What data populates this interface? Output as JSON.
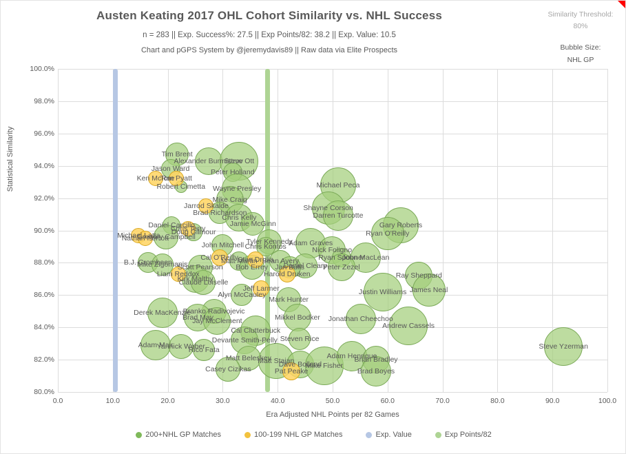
{
  "header": {
    "title": "Austen Keating 2017 OHL Cohort Similarity vs. NHL Success",
    "subtitle": "n = 283 || Exp. Success%: 27.5 || Exp Points/82: 38.2 || Exp. Value: 10.5",
    "credit": "Chart and pGPS System by @jeremydavis89 || Raw data via Elite Prospects",
    "threshold_label": "Similarity Threshold:",
    "threshold_value": "80%",
    "bubble_size_label": "Bubble Size:",
    "bubble_size_value": "NHL GP"
  },
  "chart_data": {
    "type": "scatter",
    "subtype": "bubble",
    "title": "Austen Keating 2017 OHL Cohort Similarity vs. NHL Success",
    "xlabel": "Era Adjusted NHL Points per 82 Games",
    "ylabel": "Statistical Similarity",
    "xlim": [
      0,
      100
    ],
    "ylim": [
      80,
      100
    ],
    "grid": true,
    "x_ticks": [
      {
        "v": 0,
        "label": "0.0"
      },
      {
        "v": 10,
        "label": "10.0"
      },
      {
        "v": 20,
        "label": "20.0"
      },
      {
        "v": 30,
        "label": "30.0"
      },
      {
        "v": 40,
        "label": "40.0"
      },
      {
        "v": 50,
        "label": "50.0"
      },
      {
        "v": 60,
        "label": "60.0"
      },
      {
        "v": 70,
        "label": "70.0"
      },
      {
        "v": 80,
        "label": "80.0"
      },
      {
        "v": 90,
        "label": "90.0"
      },
      {
        "v": 100,
        "label": "100.0"
      }
    ],
    "y_ticks": [
      {
        "v": 80,
        "label": "80.0%"
      },
      {
        "v": 82,
        "label": "82.0%"
      },
      {
        "v": 84,
        "label": "84.0%"
      },
      {
        "v": 86,
        "label": "86.0%"
      },
      {
        "v": 88,
        "label": "88.0%"
      },
      {
        "v": 90,
        "label": "90.0%"
      },
      {
        "v": 92,
        "label": "92.0%"
      },
      {
        "v": 94,
        "label": "94.0%"
      },
      {
        "v": 96,
        "label": "96.0%"
      },
      {
        "v": 98,
        "label": "98.0%"
      },
      {
        "v": 100,
        "label": "100.0%"
      }
    ],
    "ref_lines": [
      {
        "name": "Exp. Value",
        "x": 10.5,
        "color": "#b6c7e4",
        "width": 7
      },
      {
        "name": "Exp Points/82",
        "x": 38.2,
        "color": "#aed494",
        "width": 7
      }
    ],
    "legend": [
      {
        "label": "200+NHL GP Matches",
        "color": "#7fb95a"
      },
      {
        "label": "100-199 NHL GP Matches",
        "color": "#f2c23e"
      },
      {
        "label": "Exp. Value",
        "color": "#b6c7e4"
      },
      {
        "label": "Exp Points/82",
        "color": "#aed494"
      }
    ],
    "legend_position": "bottom",
    "series": [
      {
        "name": "200+NHL GP Matches",
        "class": "g",
        "points": [
          {
            "name": "Tim Brent",
            "x": 21.7,
            "y": 94.7,
            "r": 17
          },
          {
            "name": "Alexander Burmistrov",
            "x": 27.4,
            "y": 94.3,
            "r": 20
          },
          {
            "name": "Steve Ott",
            "x": 33.0,
            "y": 94.3,
            "r": 28
          },
          {
            "name": "Jason Ward",
            "x": 20.5,
            "y": 93.8,
            "r": 14
          },
          {
            "name": "Robert Cimetta",
            "x": 22.4,
            "y": 92.7,
            "r": 9
          },
          {
            "name": "Peter Holland",
            "x": 31.8,
            "y": 93.6,
            "r": 14
          },
          {
            "name": "Wayne Presley",
            "x": 32.6,
            "y": 92.6,
            "r": 22
          },
          {
            "name": "Michael Peca",
            "x": 51.0,
            "y": 92.8,
            "r": 26
          },
          {
            "name": "Mike Craig",
            "x": 31.3,
            "y": 91.9,
            "r": 20
          },
          {
            "name": "Shayne Corson",
            "x": 49.2,
            "y": 91.4,
            "r": 24
          },
          {
            "name": "Darren Turcotte",
            "x": 51.0,
            "y": 90.9,
            "r": 22
          },
          {
            "name": "Gary Roberts",
            "x": 62.4,
            "y": 90.3,
            "r": 26
          },
          {
            "name": "Ryan O'Reilly",
            "x": 60.0,
            "y": 89.8,
            "r": 24
          },
          {
            "name": "Brad Richardson",
            "x": 29.5,
            "y": 91.1,
            "r": 16
          },
          {
            "name": "Chris Kelly",
            "x": 33.0,
            "y": 90.8,
            "r": 20
          },
          {
            "name": "Jamie McGinn",
            "x": 35.5,
            "y": 90.4,
            "r": 17
          },
          {
            "name": "Daniel Carcillo",
            "x": 20.7,
            "y": 90.3,
            "r": 13
          },
          {
            "name": "Doug Gilmour",
            "x": 24.7,
            "y": 89.9,
            "r": 13
          },
          {
            "name": "Gregory Campbell",
            "x": 19.7,
            "y": 89.6,
            "r": 18
          },
          {
            "name": "John Mitchell",
            "x": 30.0,
            "y": 89.1,
            "r": 16
          },
          {
            "name": "Tyler Kennedy",
            "x": 38.5,
            "y": 89.3,
            "r": 18
          },
          {
            "name": "Adam Graves",
            "x": 46.0,
            "y": 89.2,
            "r": 22
          },
          {
            "name": "Chris Kontos",
            "x": 37.8,
            "y": 89.0,
            "r": 14
          },
          {
            "name": "Nick Foligno",
            "x": 49.9,
            "y": 88.8,
            "r": 20
          },
          {
            "name": "Ryan Spooner",
            "x": 51.6,
            "y": 88.3,
            "r": 14
          },
          {
            "name": "John MacLean",
            "x": 56.0,
            "y": 88.3,
            "r": 22
          },
          {
            "name": "Matt Martin",
            "x": 33.0,
            "y": 88.1,
            "r": 14
          },
          {
            "name": "Sean Avery",
            "x": 40.5,
            "y": 88.1,
            "r": 16
          },
          {
            "name": "Peter Zezel",
            "x": 51.6,
            "y": 87.7,
            "r": 20
          },
          {
            "name": "Daniel Cleary",
            "x": 45.0,
            "y": 87.8,
            "r": 18
          },
          {
            "name": "Jan Bulis",
            "x": 42.2,
            "y": 87.7,
            "r": 16
          },
          {
            "name": "B.J. Crombeen",
            "x": 16.4,
            "y": 88.0,
            "r": 15
          },
          {
            "name": "Mike Zigomanis",
            "x": 19.0,
            "y": 87.9,
            "r": 16
          },
          {
            "name": "Scott Pearson",
            "x": 25.9,
            "y": 87.7,
            "r": 18
          },
          {
            "name": "Bob Errey",
            "x": 35.3,
            "y": 87.7,
            "r": 18
          },
          {
            "name": "Kirk Maltby",
            "x": 25.0,
            "y": 87.0,
            "r": 20
          },
          {
            "name": "Claude Loiselle",
            "x": 26.5,
            "y": 86.8,
            "r": 18
          },
          {
            "name": "Alyn McCauley",
            "x": 33.5,
            "y": 86.0,
            "r": 16
          },
          {
            "name": "Ray Sheppard",
            "x": 65.7,
            "y": 87.2,
            "r": 20
          },
          {
            "name": "Justin Williams",
            "x": 59.1,
            "y": 86.2,
            "r": 28
          },
          {
            "name": "James Neal",
            "x": 67.5,
            "y": 86.3,
            "r": 24
          },
          {
            "name": "Mark Hunter",
            "x": 42.0,
            "y": 85.7,
            "r": 18
          },
          {
            "name": "Derek MacKenzie",
            "x": 19.0,
            "y": 84.9,
            "r": 22
          },
          {
            "name": "Branko Radivojevic",
            "x": 28.4,
            "y": 85.0,
            "r": 18
          },
          {
            "name": "Brad May",
            "x": 25.5,
            "y": 84.6,
            "r": 20
          },
          {
            "name": "Jay McClement",
            "x": 29.0,
            "y": 84.4,
            "r": 20
          },
          {
            "name": "Mikkel Bodker",
            "x": 43.6,
            "y": 84.6,
            "r": 20
          },
          {
            "name": "Jonathan Cheechoo",
            "x": 55.1,
            "y": 84.5,
            "r": 22
          },
          {
            "name": "Andrew Cassels",
            "x": 63.8,
            "y": 84.1,
            "r": 28
          },
          {
            "name": "Cal Clutterbuck",
            "x": 36.0,
            "y": 83.8,
            "r": 22
          },
          {
            "name": "Devante Smith-Pelly",
            "x": 34.0,
            "y": 83.2,
            "r": 20
          },
          {
            "name": "Steven Rice",
            "x": 44.0,
            "y": 83.3,
            "r": 16
          },
          {
            "name": "Adam Mair",
            "x": 17.8,
            "y": 82.9,
            "r": 22
          },
          {
            "name": "Yannick Weber",
            "x": 22.4,
            "y": 82.8,
            "r": 18
          },
          {
            "name": "Rico Fata",
            "x": 26.6,
            "y": 82.6,
            "r": 16
          },
          {
            "name": "Matt Beleskey",
            "x": 34.7,
            "y": 82.1,
            "r": 18
          },
          {
            "name": "Casey Cizikas",
            "x": 31.0,
            "y": 81.4,
            "r": 18
          },
          {
            "name": "Matt Stajan",
            "x": 39.7,
            "y": 81.9,
            "r": 26
          },
          {
            "name": "Dave Bolland",
            "x": 44.1,
            "y": 81.7,
            "r": 20
          },
          {
            "name": "Mike Fisher",
            "x": 48.5,
            "y": 81.6,
            "r": 28
          },
          {
            "name": "Adam Henrique",
            "x": 53.5,
            "y": 82.2,
            "r": 22
          },
          {
            "name": "Brian Bradley",
            "x": 57.9,
            "y": 82.0,
            "r": 20
          },
          {
            "name": "Brad Boyes",
            "x": 57.9,
            "y": 81.3,
            "r": 22
          },
          {
            "name": "Steve Yzerman",
            "x": 92.0,
            "y": 82.8,
            "r": 28
          }
        ]
      },
      {
        "name": "100-199 NHL GP Matches",
        "class": "y",
        "points": [
          {
            "name": "Ken McRae",
            "x": 17.8,
            "y": 93.2,
            "r": 11
          },
          {
            "name": "Tom Pyatt",
            "x": 21.5,
            "y": 93.2,
            "r": 11
          },
          {
            "name": "Jarrod Skalde",
            "x": 27.0,
            "y": 91.5,
            "r": 11
          },
          {
            "name": "Chris Terry",
            "x": 23.7,
            "y": 90.1,
            "r": 11
          },
          {
            "name": "Michael Latta",
            "x": 14.7,
            "y": 89.7,
            "r": 11
          },
          {
            "name": "Nathan Perrott",
            "x": 15.9,
            "y": 89.5,
            "r": 11
          },
          {
            "name": "Cal O'Reilly",
            "x": 29.4,
            "y": 88.3,
            "r": 12
          },
          {
            "name": "Stan Drulia",
            "x": 36.0,
            "y": 88.2,
            "r": 12
          },
          {
            "name": "Harold Druken",
            "x": 41.7,
            "y": 87.3,
            "r": 12
          },
          {
            "name": "Liam Reddox",
            "x": 21.9,
            "y": 87.3,
            "r": 11
          },
          {
            "name": "Jeff Larmer",
            "x": 37.0,
            "y": 86.4,
            "r": 12
          },
          {
            "name": "Pat Peake",
            "x": 42.5,
            "y": 81.3,
            "r": 13
          }
        ]
      }
    ]
  }
}
